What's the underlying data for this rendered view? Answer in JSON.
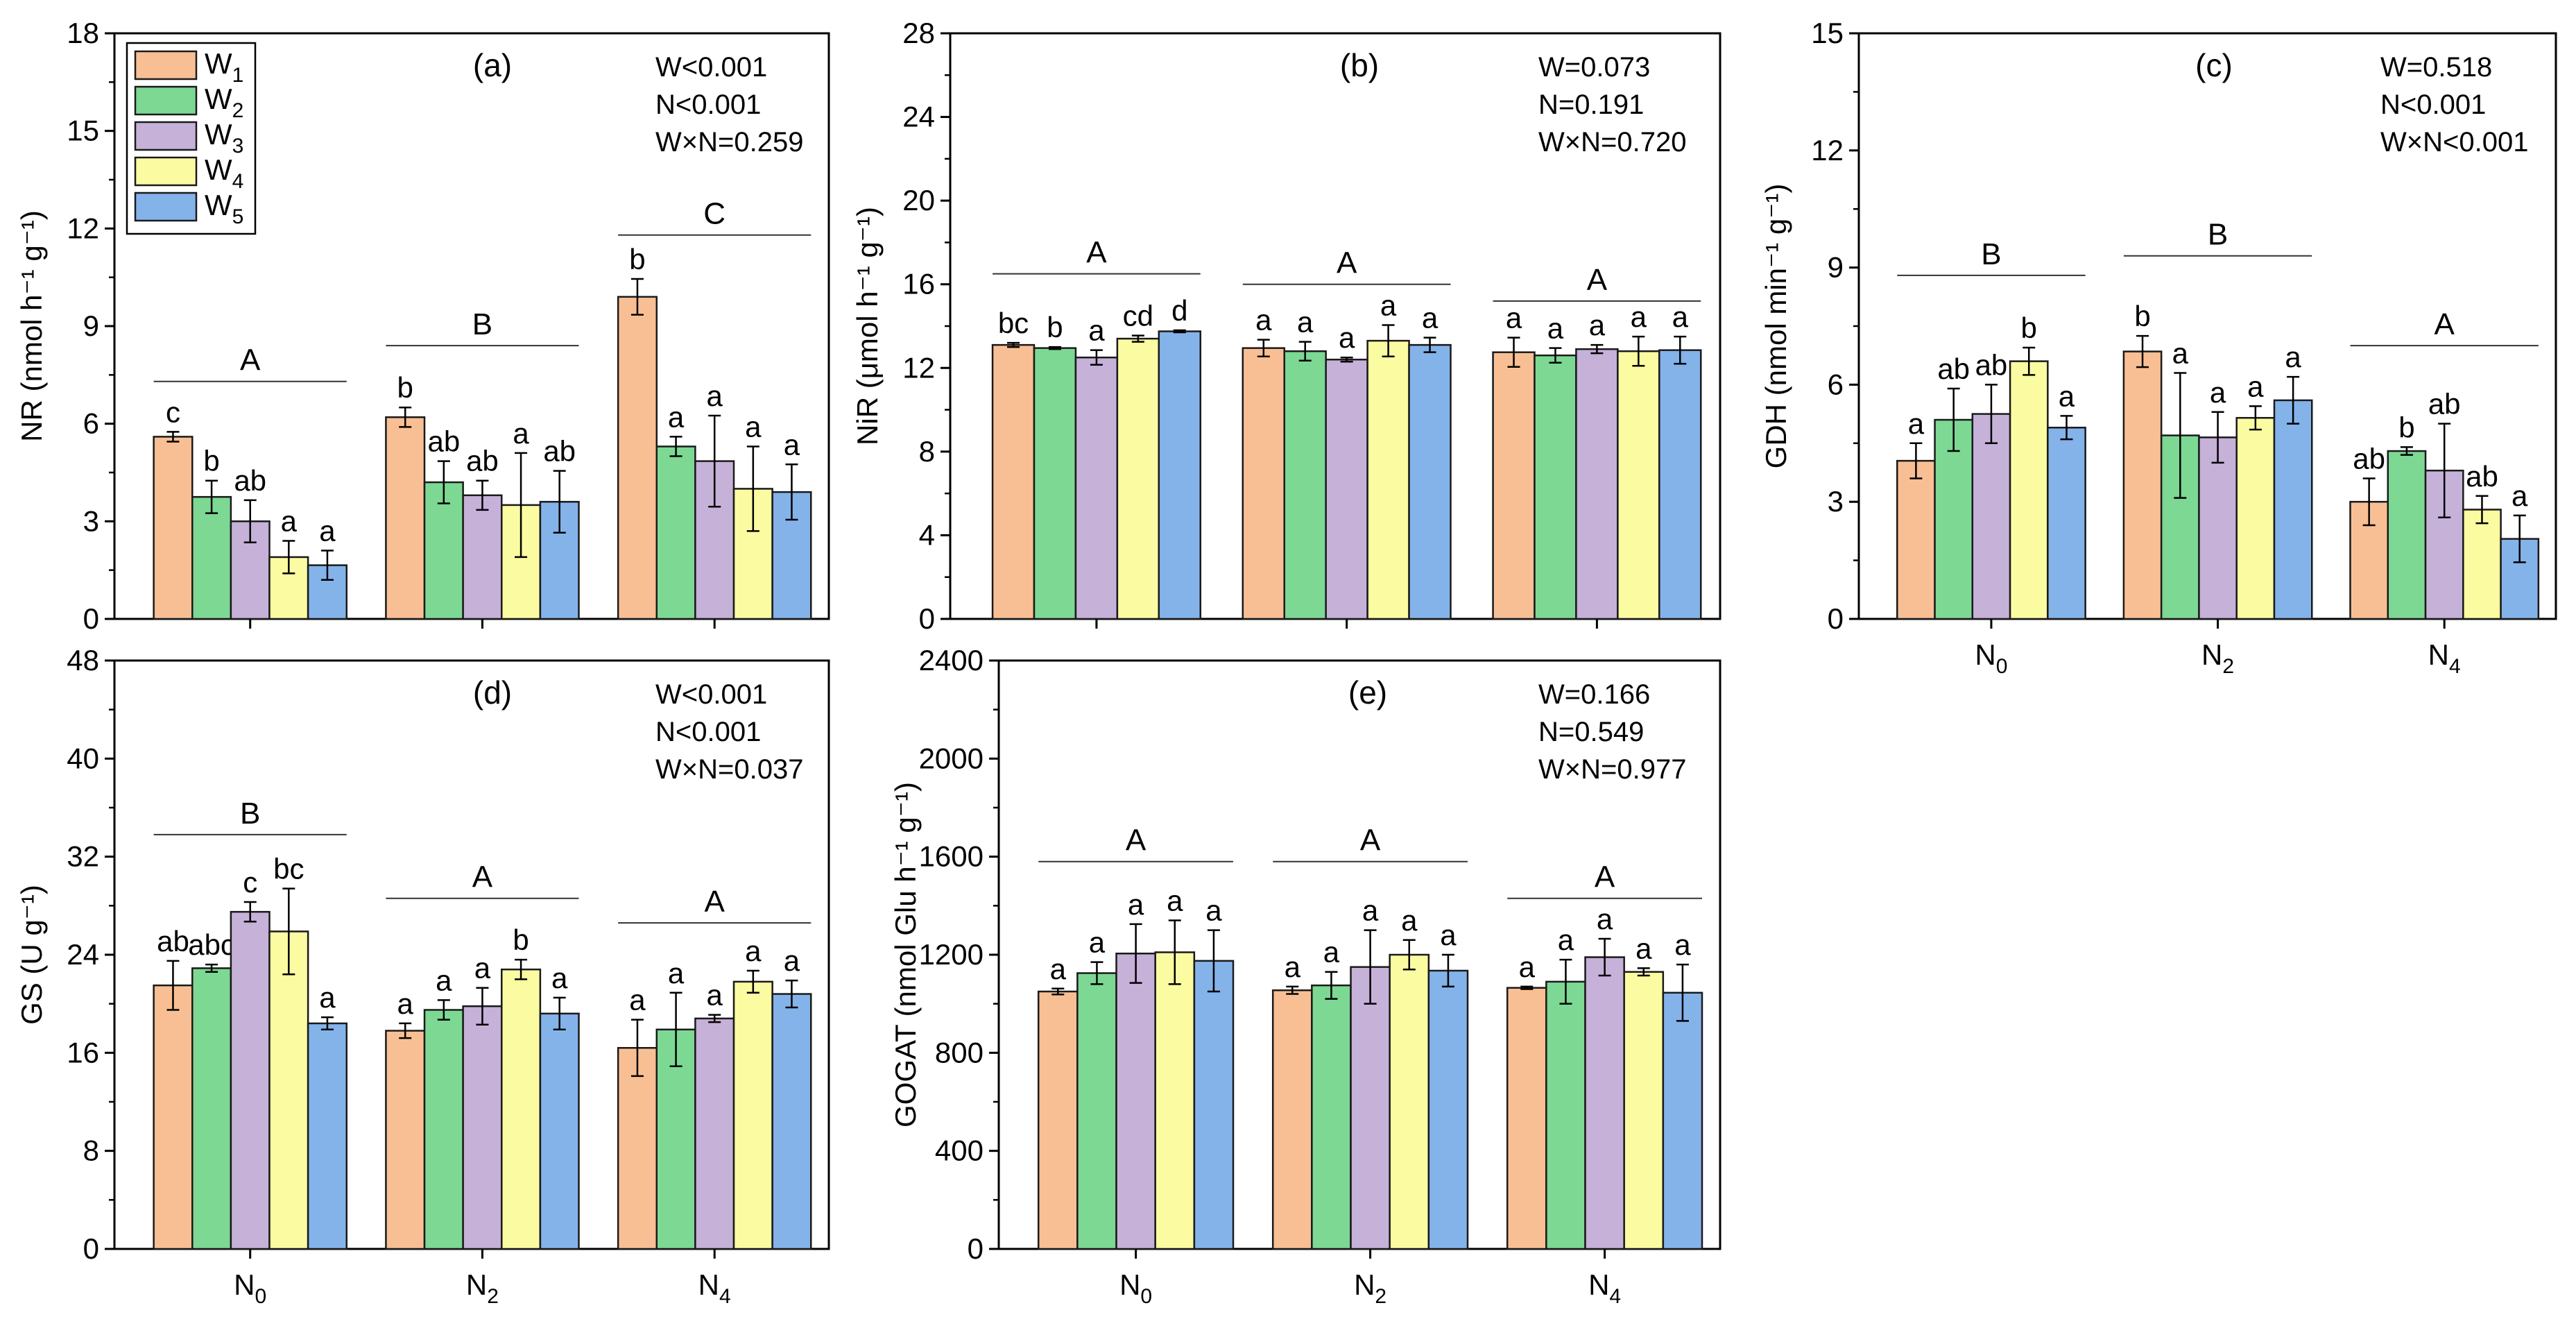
{
  "colors": {
    "W1": "#f9bf94",
    "W2": "#7dd894",
    "W3": "#c6b1d9",
    "W4": "#fbfba2",
    "W5": "#84b3ea"
  },
  "legend": [
    {
      "base": "W",
      "sub": "1"
    },
    {
      "base": "W",
      "sub": "2"
    },
    {
      "base": "W",
      "sub": "3"
    },
    {
      "base": "W",
      "sub": "4"
    },
    {
      "base": "W",
      "sub": "5"
    }
  ],
  "chart_data": [
    {
      "type": "bar",
      "panel": "(a)",
      "ylabel": "NR (nmol h⁻¹ g⁻¹)",
      "ylim": [
        0,
        18
      ],
      "yticks": [
        "0",
        "3",
        "6",
        "9",
        "12",
        "15",
        "18"
      ],
      "categories": [
        {
          "base": "N",
          "sub": "0"
        },
        {
          "base": "N",
          "sub": "2"
        },
        {
          "base": "N",
          "sub": "4"
        }
      ],
      "show_xticklabels": false,
      "stats": [
        "W<0.001",
        "N<0.001",
        "W×N=0.259"
      ],
      "series": [
        {
          "name": "W1",
          "values": [
            5.6,
            6.2,
            9.9
          ],
          "errors": [
            0.15,
            0.3,
            0.55
          ]
        },
        {
          "name": "W2",
          "values": [
            3.75,
            4.2,
            5.3
          ],
          "errors": [
            0.5,
            0.65,
            0.3
          ]
        },
        {
          "name": "W3",
          "values": [
            3.0,
            3.8,
            4.85
          ],
          "errors": [
            0.65,
            0.45,
            1.4
          ]
        },
        {
          "name": "W4",
          "values": [
            1.9,
            3.5,
            4.0
          ],
          "errors": [
            0.5,
            1.6,
            1.3
          ]
        },
        {
          "name": "W5",
          "values": [
            1.65,
            3.6,
            3.9
          ],
          "errors": [
            0.45,
            0.95,
            0.85
          ]
        }
      ],
      "letters": [
        [
          "c",
          "b",
          "ab",
          "a",
          "a"
        ],
        [
          "b",
          "ab",
          "ab",
          "a",
          "ab"
        ],
        [
          "b",
          "a",
          "a",
          "a",
          "a"
        ]
      ],
      "group_letters": [
        "A",
        "B",
        "C"
      ],
      "group_letter_values": [
        7.3,
        8.4,
        11.8
      ]
    },
    {
      "type": "bar",
      "panel": "(b)",
      "ylabel": "NiR (μmol h⁻¹ g⁻¹)",
      "ylim": [
        0,
        28
      ],
      "yticks": [
        "0",
        "4",
        "8",
        "12",
        "16",
        "20",
        "24",
        "28"
      ],
      "categories": [
        {
          "base": "N",
          "sub": "0"
        },
        {
          "base": "N",
          "sub": "2"
        },
        {
          "base": "N",
          "sub": "4"
        }
      ],
      "show_xticklabels": false,
      "stats": [
        "W=0.073",
        "N=0.191",
        "W×N=0.720"
      ],
      "series": [
        {
          "name": "W1",
          "values": [
            13.1,
            12.95,
            12.75
          ],
          "errors": [
            0.1,
            0.4,
            0.7
          ]
        },
        {
          "name": "W2",
          "values": [
            12.95,
            12.8,
            12.6
          ],
          "errors": [
            0.05,
            0.45,
            0.35
          ]
        },
        {
          "name": "W3",
          "values": [
            12.5,
            12.4,
            12.9
          ],
          "errors": [
            0.35,
            0.1,
            0.2
          ]
        },
        {
          "name": "W4",
          "values": [
            13.4,
            13.3,
            12.8
          ],
          "errors": [
            0.15,
            0.75,
            0.7
          ]
        },
        {
          "name": "W5",
          "values": [
            13.75,
            13.1,
            12.85
          ],
          "errors": [
            0.05,
            0.35,
            0.65
          ]
        }
      ],
      "letters": [
        [
          "bc",
          "b",
          "a",
          "cd",
          "d"
        ],
        [
          "a",
          "a",
          "a",
          "a",
          "a"
        ],
        [
          "a",
          "a",
          "a",
          "a",
          "a"
        ]
      ],
      "group_letters": [
        "A",
        "A",
        "A"
      ],
      "group_letter_values": [
        16.5,
        16.0,
        15.2
      ]
    },
    {
      "type": "bar",
      "panel": "(c)",
      "ylabel": "GDH (nmol min⁻¹ g⁻¹)",
      "ylim": [
        0,
        15
      ],
      "yticks": [
        "0",
        "3",
        "6",
        "9",
        "12",
        "15"
      ],
      "categories": [
        {
          "base": "N",
          "sub": "0"
        },
        {
          "base": "N",
          "sub": "2"
        },
        {
          "base": "N",
          "sub": "4"
        }
      ],
      "show_xticklabels": true,
      "stats": [
        "W=0.518",
        "N<0.001",
        "W×N<0.001"
      ],
      "series": [
        {
          "name": "W1",
          "values": [
            4.05,
            6.85,
            3.0
          ],
          "errors": [
            0.45,
            0.4,
            0.6
          ]
        },
        {
          "name": "W2",
          "values": [
            5.1,
            4.7,
            4.3
          ],
          "errors": [
            0.8,
            1.6,
            0.1
          ]
        },
        {
          "name": "W3",
          "values": [
            5.25,
            4.65,
            3.8
          ],
          "errors": [
            0.75,
            0.65,
            1.2
          ]
        },
        {
          "name": "W4",
          "values": [
            6.6,
            5.15,
            2.8
          ],
          "errors": [
            0.35,
            0.3,
            0.35
          ]
        },
        {
          "name": "W5",
          "values": [
            4.9,
            5.6,
            2.05
          ],
          "errors": [
            0.3,
            0.6,
            0.6
          ]
        }
      ],
      "letters": [
        [
          "a",
          "ab",
          "ab",
          "b",
          "a"
        ],
        [
          "b",
          "a",
          "a",
          "a",
          "a"
        ],
        [
          "ab",
          "b",
          "ab",
          "ab",
          "a"
        ]
      ],
      "group_letters": [
        "B",
        "B",
        "A"
      ],
      "group_letter_values": [
        8.8,
        9.3,
        7.0
      ]
    },
    {
      "type": "bar",
      "panel": "(d)",
      "ylabel": "GS (U g⁻¹)",
      "ylim": [
        0,
        48
      ],
      "yticks": [
        "0",
        "8",
        "16",
        "24",
        "32",
        "40",
        "48"
      ],
      "categories": [
        {
          "base": "N",
          "sub": "0"
        },
        {
          "base": "N",
          "sub": "2"
        },
        {
          "base": "N",
          "sub": "4"
        }
      ],
      "show_xticklabels": true,
      "stats": [
        "W<0.001",
        "N<0.001",
        "W×N=0.037"
      ],
      "series": [
        {
          "name": "W1",
          "values": [
            21.5,
            17.8,
            16.4
          ],
          "errors": [
            2.0,
            0.6,
            2.3
          ]
        },
        {
          "name": "W2",
          "values": [
            22.9,
            19.5,
            17.9
          ],
          "errors": [
            0.3,
            0.8,
            3.0
          ]
        },
        {
          "name": "W3",
          "values": [
            27.5,
            19.8,
            18.8
          ],
          "errors": [
            0.8,
            1.5,
            0.3
          ]
        },
        {
          "name": "W4",
          "values": [
            25.9,
            22.8,
            21.8
          ],
          "errors": [
            3.5,
            0.8,
            0.9
          ]
        },
        {
          "name": "W5",
          "values": [
            18.4,
            19.2,
            20.8
          ],
          "errors": [
            0.5,
            1.3,
            1.1
          ]
        }
      ],
      "letters": [
        [
          "ab",
          "abc",
          "c",
          "bc",
          "a"
        ],
        [
          "a",
          "a",
          "a",
          "b",
          "a"
        ],
        [
          "a",
          "a",
          "a",
          "a",
          "a"
        ]
      ],
      "group_letters": [
        "B",
        "A",
        "A"
      ],
      "group_letter_values": [
        33.8,
        28.6,
        26.6
      ]
    },
    {
      "type": "bar",
      "panel": "(e)",
      "ylabel": "GOGAT (nmol Glu h⁻¹ g⁻¹)",
      "ylim": [
        0,
        2400
      ],
      "yticks": [
        "0",
        "400",
        "800",
        "1200",
        "1600",
        "2000",
        "2400"
      ],
      "categories": [
        {
          "base": "N",
          "sub": "0"
        },
        {
          "base": "N",
          "sub": "2"
        },
        {
          "base": "N",
          "sub": "4"
        }
      ],
      "show_xticklabels": true,
      "stats": [
        "W=0.166",
        "N=0.549",
        "W×N=0.977"
      ],
      "series": [
        {
          "name": "W1",
          "values": [
            1050,
            1055,
            1065
          ],
          "errors": [
            12,
            15,
            5
          ]
        },
        {
          "name": "W2",
          "values": [
            1125,
            1075,
            1090
          ],
          "errors": [
            45,
            55,
            90
          ]
        },
        {
          "name": "W3",
          "values": [
            1205,
            1150,
            1190
          ],
          "errors": [
            120,
            150,
            75
          ]
        },
        {
          "name": "W4",
          "values": [
            1210,
            1200,
            1130
          ],
          "errors": [
            130,
            60,
            15
          ]
        },
        {
          "name": "W5",
          "values": [
            1175,
            1135,
            1045
          ],
          "errors": [
            125,
            65,
            115
          ]
        }
      ],
      "letters": [
        [
          "a",
          "a",
          "a",
          "a",
          "a"
        ],
        [
          "a",
          "a",
          "a",
          "a",
          "a"
        ],
        [
          "a",
          "a",
          "a",
          "a",
          "a"
        ]
      ],
      "group_letters": [
        "A",
        "A",
        "A"
      ],
      "group_letter_values": [
        1580,
        1580,
        1430
      ]
    }
  ]
}
